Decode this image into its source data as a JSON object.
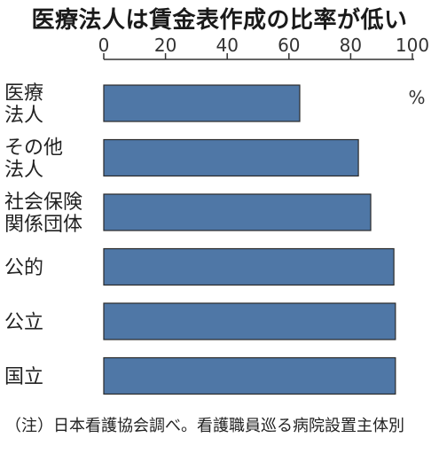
{
  "chart_data": {
    "type": "bar",
    "orientation": "horizontal",
    "title": "医療法人は賃金表作成の比率が低い",
    "unit": "%",
    "xlim": [
      0,
      100
    ],
    "ticks": [
      "0",
      "20",
      "40",
      "60",
      "80",
      "100"
    ],
    "categories": [
      [
        "医療",
        "法人"
      ],
      [
        "その他",
        "法人"
      ],
      [
        "社会保険",
        "関係団体"
      ],
      [
        "公的"
      ],
      [
        "公立"
      ],
      [
        "国立"
      ]
    ],
    "values": [
      63.5,
      82.5,
      86.5,
      94,
      94.5,
      94.5
    ],
    "grid": false,
    "bar_color": "#4f77a6"
  },
  "note": {
    "prefix": "（注）",
    "text": "日本看護協会調べ。看護職員巡る病院設置主体別"
  }
}
